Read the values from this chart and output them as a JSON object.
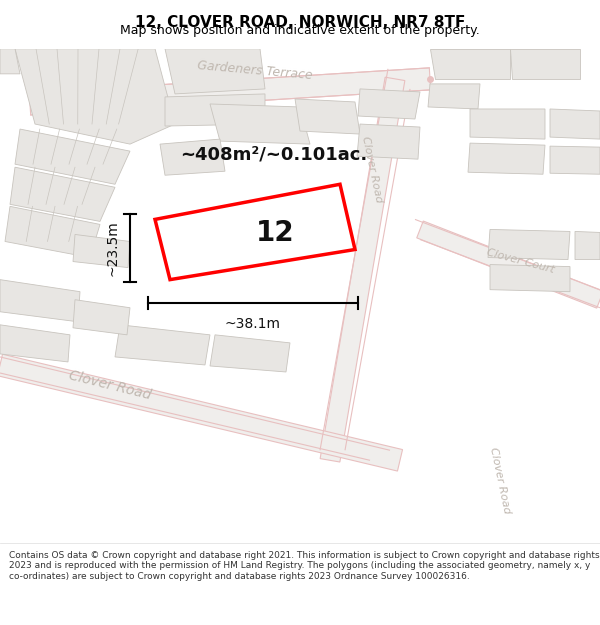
{
  "title": "12, CLOVER ROAD, NORWICH, NR7 8TF",
  "subtitle": "Map shows position and indicative extent of the property.",
  "footer": "Contains OS data © Crown copyright and database right 2021. This information is subject to Crown copyright and database rights 2023 and is reproduced with the permission of HM Land Registry. The polygons (including the associated geometry, namely x, y co-ordinates) are subject to Crown copyright and database rights 2023 Ordnance Survey 100026316.",
  "map_bg": "#f7f6f4",
  "building_fill": "#e8e6e3",
  "building_edge": "#c8c4be",
  "road_outline_color": "#e8c0c0",
  "road_center_color": "#f0eeec",
  "property_outline": "#ff0000",
  "area_text": "~408m²/~0.101ac.",
  "number_text": "12",
  "width_text": "~38.1m",
  "height_text": "~23.5m",
  "background_color": "#ffffff",
  "title_fontsize": 11,
  "subtitle_fontsize": 9,
  "footer_fontsize": 6.5,
  "street_color": "#c0b8b0"
}
